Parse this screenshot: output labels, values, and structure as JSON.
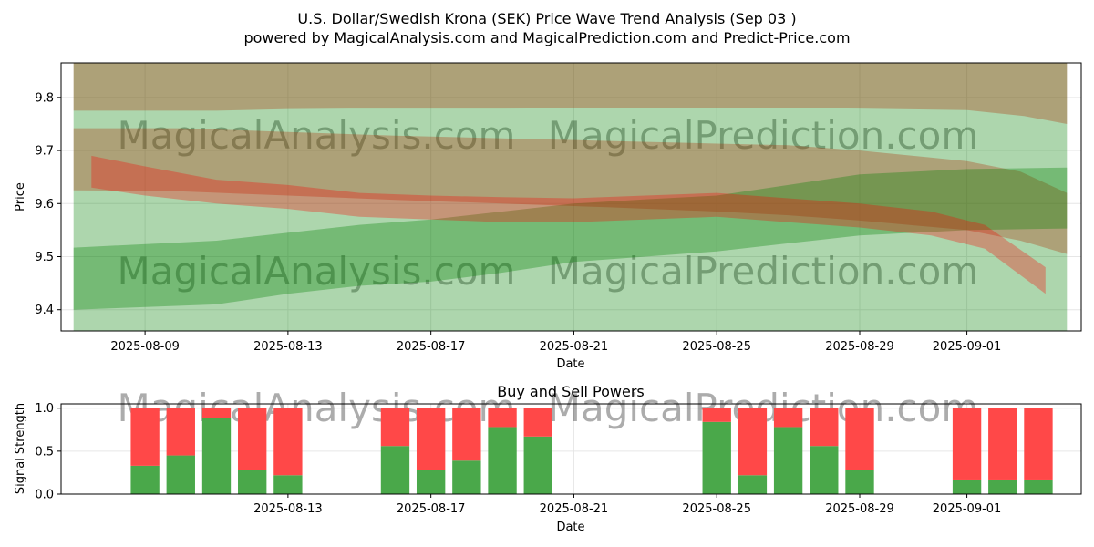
{
  "figure": {
    "title_line1": "U.S. Dollar/Swedish Krona (SEK) Price Wave Trend Analysis (Sep 03 )",
    "title_line2": "powered by MagicalAnalysis.com and MagicalPrediction.com and Predict-Price.com",
    "watermarks": [
      "MagicalAnalysis.com",
      "MagicalPrediction.com"
    ]
  },
  "colors": {
    "red_band": "#ff0000",
    "green_band": "#008000",
    "buy": "#4aa84a",
    "sell": "#ff4848",
    "grid": "#e6e6e6"
  },
  "chart_data": [
    {
      "type": "area",
      "title": "",
      "xlabel": "Date",
      "ylabel": "Price",
      "x_start": "2025-08-07",
      "x_end": "2025-09-04",
      "xlim_days": [
        -0.35,
        28.2
      ],
      "ylim": [
        9.36,
        9.865
      ],
      "xticks": [
        {
          "day": 2,
          "label": "2025-08-09"
        },
        {
          "day": 6,
          "label": "2025-08-13"
        },
        {
          "day": 10,
          "label": "2025-08-17"
        },
        {
          "day": 14,
          "label": "2025-08-21"
        },
        {
          "day": 18,
          "label": "2025-08-25"
        },
        {
          "day": 22,
          "label": "2025-08-29"
        },
        {
          "day": 25,
          "label": "2025-09-01"
        }
      ],
      "yticks": [
        9.4,
        9.5,
        9.6,
        9.7,
        9.8
      ],
      "bands": [
        {
          "color": "red",
          "opacity": 0.3,
          "x": [
            0,
            4,
            6,
            8,
            12,
            16,
            20,
            22,
            25,
            26.6,
            27.8
          ],
          "upper": [
            9.865,
            9.865,
            9.865,
            9.865,
            9.865,
            9.865,
            9.865,
            9.865,
            9.865,
            9.865,
            9.865
          ],
          "lower": [
            9.775,
            9.775,
            9.778,
            9.779,
            9.779,
            9.78,
            9.78,
            9.779,
            9.776,
            9.765,
            9.75
          ]
        },
        {
          "color": "red",
          "opacity": 0.3,
          "x": [
            0,
            3,
            6,
            9,
            12,
            15,
            18,
            20,
            22,
            25,
            26.5,
            27.8
          ],
          "upper": [
            9.742,
            9.742,
            9.735,
            9.728,
            9.723,
            9.718,
            9.713,
            9.71,
            9.7,
            9.68,
            9.66,
            9.62
          ],
          "lower": [
            9.625,
            9.623,
            9.615,
            9.607,
            9.6,
            9.593,
            9.585,
            9.578,
            9.568,
            9.55,
            9.53,
            9.505
          ]
        },
        {
          "color": "green",
          "opacity": 0.32,
          "x": [
            0,
            4,
            6,
            8,
            10,
            12,
            14,
            16,
            18,
            20,
            22,
            25,
            27.8
          ],
          "upper": [
            9.517,
            9.53,
            9.545,
            9.56,
            9.57,
            9.585,
            9.6,
            9.608,
            9.615,
            9.635,
            9.655,
            9.665,
            9.668
          ]
        },
        {
          "color": "green",
          "opacity": 0.32,
          "x": [
            0,
            4,
            6,
            8,
            10,
            12,
            14,
            16,
            18,
            20,
            22,
            25,
            27.8
          ],
          "lower": [
            9.4,
            9.41,
            9.43,
            9.445,
            9.453,
            9.47,
            9.49,
            9.5,
            9.51,
            9.525,
            9.54,
            9.55,
            9.553
          ]
        },
        {
          "color": "red",
          "opacity": 0.3,
          "x": [
            0.5,
            2,
            4,
            6,
            8,
            10,
            12,
            14,
            16,
            18,
            20,
            22,
            24,
            25.5,
            27.2
          ],
          "upper": [
            9.69,
            9.67,
            9.645,
            9.635,
            9.62,
            9.615,
            9.612,
            9.61,
            9.615,
            9.62,
            9.61,
            9.6,
            9.585,
            9.56,
            9.48
          ],
          "lower": [
            9.63,
            9.615,
            9.6,
            9.59,
            9.575,
            9.57,
            9.565,
            9.565,
            9.57,
            9.575,
            9.565,
            9.555,
            9.54,
            9.515,
            9.43
          ]
        }
      ],
      "legend": "none"
    },
    {
      "type": "bar",
      "title": "Buy and Sell Powers",
      "xlabel": "Date",
      "ylabel": "Signal Strength",
      "xlim_days": [
        -0.35,
        28.2
      ],
      "ylim": [
        0,
        1.05
      ],
      "xticks": [
        {
          "day": 6,
          "label": "2025-08-13"
        },
        {
          "day": 10,
          "label": "2025-08-17"
        },
        {
          "day": 14,
          "label": "2025-08-21"
        },
        {
          "day": 18,
          "label": "2025-08-25"
        },
        {
          "day": 22,
          "label": "2025-08-29"
        },
        {
          "day": 25,
          "label": "2025-09-01"
        }
      ],
      "yticks": [
        0.0,
        0.5,
        1.0
      ],
      "series": [
        {
          "name": "Buy",
          "color": "#4aa84a"
        },
        {
          "name": "Sell",
          "color": "#ff4848"
        }
      ],
      "days": [
        2,
        3,
        4,
        5,
        6,
        9,
        10,
        11,
        12,
        13,
        18,
        19,
        20,
        21,
        22,
        25,
        26,
        27
      ],
      "buy_values": [
        0.33,
        0.45,
        0.89,
        0.28,
        0.22,
        0.56,
        0.28,
        0.39,
        0.78,
        0.67,
        0.84,
        0.22,
        0.78,
        0.56,
        0.28,
        0.17,
        0.17,
        0.17
      ]
    }
  ]
}
